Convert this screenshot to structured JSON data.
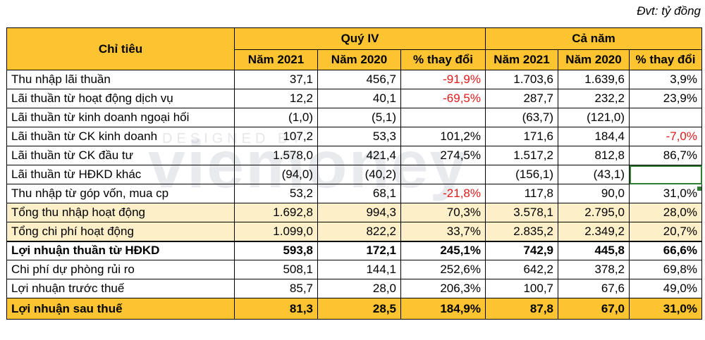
{
  "unit_note": "Đvt: tỷ đồng",
  "watermark": {
    "designed_by": "DESIGNED BY",
    "brand": "viemoney"
  },
  "header": {
    "indicator": "Chỉ tiêu",
    "group_q4": "Quý IV",
    "group_year": "Cả năm",
    "col_2021": "Năm 2021",
    "col_2020": "Năm 2020",
    "col_change": "% thay đổi"
  },
  "colors": {
    "header_gold": "#fcc431",
    "band_light": "#fdefc7",
    "negative_red": "#e01919"
  },
  "rows": [
    {
      "label": "Thu nhập lãi thuần",
      "q4_2021": "37,1",
      "q4_2020": "456,7",
      "q4_change": "-91,9%",
      "y_2021": "1.703,6",
      "y_2020": "1.639,6",
      "y_change": "3,9%"
    },
    {
      "label": "Lãi thuần từ hoạt động dịch vụ",
      "q4_2021": "12,2",
      "q4_2020": "40,1",
      "q4_change": "-69,5%",
      "y_2021": "287,7",
      "y_2020": "232,2",
      "y_change": "23,9%"
    },
    {
      "label": "Lãi thuần từ kinh doanh ngoại hối",
      "q4_2021": "(1,0)",
      "q4_2020": "(5,1)",
      "q4_change": "",
      "y_2021": "(63,7)",
      "y_2020": "(121,0)",
      "y_change": ""
    },
    {
      "label": "Lãi thuần từ CK kinh doanh",
      "q4_2021": "107,2",
      "q4_2020": "53,3",
      "q4_change": "101,2%",
      "y_2021": "171,6",
      "y_2020": "184,4",
      "y_change": "-7,0%"
    },
    {
      "label": "Lãi thuần từ CK đầu tư",
      "q4_2021": "1.578,0",
      "q4_2020": "421,4",
      "q4_change": "274,5%",
      "y_2021": "1.517,2",
      "y_2020": "812,8",
      "y_change": "86,7%"
    },
    {
      "label": "Lãi thuần từ HĐKD khác",
      "q4_2021": "(94,0)",
      "q4_2020": "(40,2)",
      "q4_change": "",
      "y_2021": "(156,1)",
      "y_2020": "(43,1)",
      "y_change": ""
    },
    {
      "label": "Thu nhập từ góp vốn, mua cp",
      "q4_2021": "53,2",
      "q4_2020": "68,1",
      "q4_change": "-21,8%",
      "y_2021": "117,8",
      "y_2020": "90,0",
      "y_change": "31,0%"
    },
    {
      "label": "Tổng thu nhập hoạt động",
      "q4_2021": "1.692,8",
      "q4_2020": "994,3",
      "q4_change": "70,3%",
      "y_2021": "3.578,1",
      "y_2020": "2.795,0",
      "y_change": "28,0%"
    },
    {
      "label": "Tổng chi phí hoạt động",
      "q4_2021": "1.099,0",
      "q4_2020": "822,2",
      "q4_change": "33,7%",
      "y_2021": "2.835,2",
      "y_2020": "2.349,2",
      "y_change": "20,7%"
    },
    {
      "label": "Lợi nhuận thuần từ HĐKD",
      "q4_2021": "593,8",
      "q4_2020": "172,1",
      "q4_change": "245,1%",
      "y_2021": "742,9",
      "y_2020": "445,8",
      "y_change": "66,6%"
    },
    {
      "label": "Chi phí dự phòng rủi ro",
      "q4_2021": "508,1",
      "q4_2020": "144,1",
      "q4_change": "252,6%",
      "y_2021": "642,2",
      "y_2020": "378,2",
      "y_change": "69,8%"
    },
    {
      "label": "Lợi nhuận trước thuế",
      "q4_2021": "85,7",
      "q4_2020": "28,0",
      "q4_change": "206,3%",
      "y_2021": "100,7",
      "y_2020": "67,6",
      "y_change": "49,0%"
    },
    {
      "label": "Lợi nhuận sau thuế",
      "q4_2021": "81,3",
      "q4_2020": "28,5",
      "q4_change": "184,9%",
      "y_2021": "87,8",
      "y_2020": "67,0",
      "y_change": "31,0%"
    }
  ]
}
